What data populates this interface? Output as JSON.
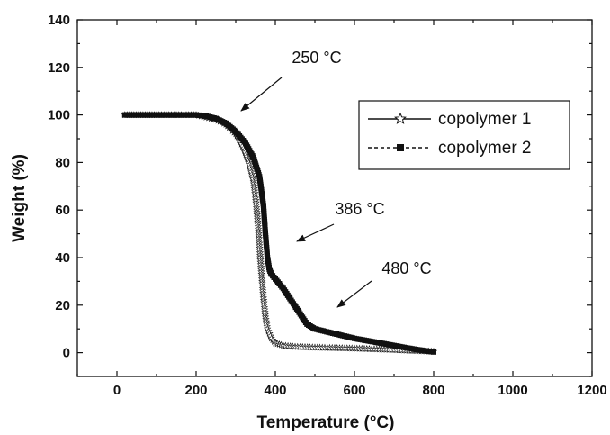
{
  "chart_data": {
    "type": "line",
    "title": "",
    "xlabel": "Temperature (°C)",
    "ylabel": "Weight (%)",
    "xlim": [
      -100,
      1200
    ],
    "ylim": [
      -10,
      140
    ],
    "xticks": [
      0,
      200,
      400,
      600,
      800,
      1000,
      1200
    ],
    "yticks": [
      0,
      20,
      40,
      60,
      80,
      100,
      120,
      140
    ],
    "grid": false,
    "legend_position": "upper-right",
    "series": [
      {
        "name": "copolymer 1",
        "marker": "star",
        "line": "solid",
        "x": [
          20,
          100,
          150,
          200,
          225,
          250,
          275,
          300,
          320,
          335,
          345,
          352,
          358,
          362,
          366,
          370,
          375,
          380,
          390,
          400,
          420,
          450,
          500,
          550,
          600,
          650,
          700,
          750,
          800
        ],
        "y": [
          100,
          100,
          100,
          100,
          99,
          98,
          96,
          92,
          86,
          79,
          72,
          62,
          50,
          40,
          31,
          23,
          15,
          10,
          6,
          4,
          3,
          2.5,
          2.2,
          2,
          1.8,
          1.5,
          1.2,
          0.8,
          0.5
        ]
      },
      {
        "name": "copolymer 2",
        "marker": "square",
        "line": "dash",
        "x": [
          20,
          100,
          150,
          200,
          225,
          250,
          275,
          300,
          325,
          345,
          360,
          370,
          375,
          380,
          385,
          390,
          400,
          420,
          440,
          460,
          480,
          500,
          550,
          600,
          650,
          700,
          750,
          800
        ],
        "y": [
          100,
          100,
          100,
          100,
          99.5,
          98.5,
          96.5,
          93,
          88,
          82,
          74,
          62,
          50,
          40,
          35,
          33,
          31,
          27,
          22,
          17,
          12,
          10,
          8,
          6,
          4.5,
          3,
          1.5,
          0.3
        ]
      }
    ],
    "annotations": [
      {
        "text": "250 °C",
        "point_at": [
          310,
          101
        ]
      },
      {
        "text": "386 °C",
        "point_at": [
          386,
          46
        ]
      },
      {
        "text": "480 °C",
        "point_at": [
          480,
          16
        ]
      }
    ]
  }
}
